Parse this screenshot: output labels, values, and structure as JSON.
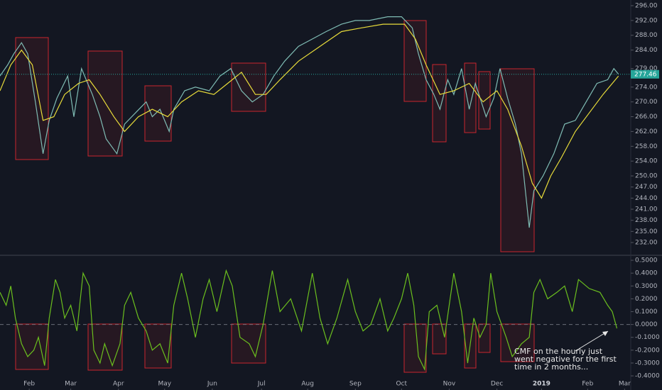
{
  "chart_data": [
    {
      "type": "line",
      "xlim": [
        0,
        410
      ],
      "ylim": [
        229.13,
        297.53
      ],
      "yticks": [
        {
          "value": 296,
          "label": "296.00"
        },
        {
          "value": 292,
          "label": "292.00"
        },
        {
          "value": 288,
          "label": "288.00"
        },
        {
          "value": 284,
          "label": "284.00"
        },
        {
          "value": 279,
          "label": "279.00"
        },
        {
          "value": 274,
          "label": "274.00"
        },
        {
          "value": 270,
          "label": "270.00"
        },
        {
          "value": 266,
          "label": "266.00"
        },
        {
          "value": 262,
          "label": "262.00"
        },
        {
          "value": 258,
          "label": "258.00"
        },
        {
          "value": 254,
          "label": "254.00"
        },
        {
          "value": 250,
          "label": "250.00"
        },
        {
          "value": 247,
          "label": "247.00"
        },
        {
          "value": 244,
          "label": "244.00"
        },
        {
          "value": 241,
          "label": "241.00"
        },
        {
          "value": 238,
          "label": "238.00"
        },
        {
          "value": 235,
          "label": "235.00"
        },
        {
          "value": 232,
          "label": "232.00"
        }
      ],
      "last_value": 277.46,
      "last_color": "#26a69a",
      "series": [
        {
          "color": "#7fbcb4",
          "x": [
            0,
            5,
            9,
            14,
            18,
            23,
            28,
            32,
            37,
            44,
            48,
            53,
            56,
            60,
            65,
            69,
            76,
            81,
            88,
            95,
            99,
            104,
            110,
            113,
            120,
            127,
            136,
            143,
            150,
            157,
            164,
            171,
            178,
            185,
            194,
            203,
            212,
            222,
            231,
            240,
            252,
            261,
            268,
            272,
            277,
            282,
            286,
            291,
            295,
            300,
            305,
            309,
            316,
            321,
            325,
            330,
            335,
            339,
            344,
            347,
            353,
            360,
            367,
            374,
            381,
            388,
            395,
            399,
            402
          ],
          "values": [
            277,
            280,
            283,
            286,
            283,
            270,
            256,
            265,
            271,
            277,
            266,
            279,
            276,
            272,
            266,
            260,
            256,
            264,
            267,
            270,
            266,
            268,
            262,
            268,
            273,
            274,
            273,
            277,
            279,
            273,
            270,
            272,
            277,
            281,
            285,
            287,
            289,
            291,
            292,
            292,
            293,
            293,
            290,
            283,
            276,
            272,
            268,
            276,
            272,
            279,
            268,
            275,
            266,
            271,
            279,
            271,
            264,
            256,
            236,
            246,
            250,
            256,
            264,
            265,
            270,
            275,
            276,
            279,
            277.5
          ]
        },
        {
          "color": "#e8dc3a",
          "x": [
            0,
            7,
            14,
            21,
            28,
            35,
            42,
            51,
            58,
            65,
            74,
            81,
            90,
            99,
            109,
            118,
            129,
            139,
            148,
            157,
            166,
            173,
            182,
            194,
            208,
            222,
            235,
            249,
            263,
            270,
            277,
            286,
            295,
            305,
            314,
            323,
            330,
            339,
            346,
            352,
            358,
            365,
            374,
            383,
            392,
            402
          ],
          "values": [
            273,
            280,
            284,
            280,
            265,
            266,
            272,
            275,
            276,
            272,
            266,
            262,
            266,
            268,
            266,
            270,
            273,
            272,
            275,
            278,
            272,
            272,
            276,
            281,
            285,
            289,
            290,
            291,
            291,
            287,
            280,
            272,
            273,
            275,
            270,
            273,
            268,
            258,
            248,
            244,
            250,
            255,
            262,
            267,
            272,
            277
          ]
        }
      ]
    },
    {
      "type": "line",
      "xlim": [
        0,
        410
      ],
      "ylim": [
        -0.499,
        0.528
      ],
      "zero_line": 0,
      "yticks": [
        {
          "value": 0.5,
          "label": "0.5000"
        },
        {
          "value": 0.4,
          "label": "0.4000"
        },
        {
          "value": 0.3,
          "label": "0.3000"
        },
        {
          "value": 0.2,
          "label": "0.2000"
        },
        {
          "value": 0.1,
          "label": "0.1000"
        },
        {
          "value": 0,
          "label": "0.0000"
        },
        {
          "value": -0.1,
          "label": "-0.1000"
        },
        {
          "value": -0.2,
          "label": "-0.2000"
        },
        {
          "value": -0.3,
          "label": "-0.3000"
        },
        {
          "value": -0.4,
          "label": "-0.4000"
        }
      ],
      "xticks": [
        {
          "value": 19,
          "label": "Feb"
        },
        {
          "value": 46,
          "label": "Mar"
        },
        {
          "value": 77,
          "label": "Apr"
        },
        {
          "value": 107,
          "label": "May"
        },
        {
          "value": 138,
          "label": "Jun"
        },
        {
          "value": 170,
          "label": "Jul"
        },
        {
          "value": 200,
          "label": "Aug"
        },
        {
          "value": 231,
          "label": "Sep"
        },
        {
          "value": 261,
          "label": "Oct"
        },
        {
          "value": 292,
          "label": "Nov"
        },
        {
          "value": 323,
          "label": "Dec"
        },
        {
          "value": 352,
          "label": "2019"
        },
        {
          "value": 382,
          "label": "Feb"
        },
        {
          "value": 406,
          "label": "Mar"
        }
      ],
      "annotation": "CMF on the hourly just went negative for the first time in 2 months...",
      "series": [
        {
          "color": "#6bbf1e",
          "x": [
            0,
            4,
            7,
            10,
            14,
            18,
            22,
            25,
            29,
            32,
            36,
            39,
            42,
            46,
            50,
            54,
            58,
            61,
            65,
            68,
            73,
            78,
            81,
            85,
            90,
            95,
            99,
            104,
            109,
            113,
            118,
            122,
            127,
            132,
            136,
            141,
            147,
            151,
            156,
            162,
            166,
            171,
            177,
            182,
            189,
            196,
            203,
            208,
            213,
            219,
            226,
            231,
            236,
            241,
            247,
            252,
            256,
            261,
            265,
            269,
            272,
            276,
            279,
            284,
            289,
            295,
            300,
            304,
            308,
            312,
            316,
            319,
            323,
            329,
            333,
            339,
            344,
            347,
            351,
            356,
            362,
            367,
            372,
            376,
            383,
            390,
            395,
            398,
            401
          ],
          "values": [
            0.25,
            0.15,
            0.3,
            0.05,
            -0.15,
            -0.25,
            -0.2,
            -0.1,
            -0.32,
            0.05,
            0.35,
            0.25,
            0.05,
            0.15,
            -0.05,
            0.4,
            0.3,
            -0.2,
            -0.3,
            -0.15,
            -0.32,
            -0.15,
            0.15,
            0.25,
            0.05,
            -0.05,
            -0.2,
            -0.15,
            -0.3,
            0.15,
            0.4,
            0.2,
            -0.1,
            0.2,
            0.35,
            0.1,
            0.42,
            0.3,
            -0.1,
            -0.15,
            -0.25,
            0.0,
            0.42,
            0.1,
            0.2,
            -0.05,
            0.4,
            0.05,
            -0.15,
            0.05,
            0.35,
            0.1,
            -0.05,
            0.0,
            0.2,
            -0.05,
            0.05,
            0.2,
            0.4,
            0.15,
            -0.25,
            -0.35,
            0.1,
            0.15,
            -0.1,
            0.4,
            0.1,
            -0.3,
            0.05,
            -0.1,
            0.0,
            0.4,
            0.1,
            -0.1,
            -0.25,
            -0.15,
            -0.1,
            0.25,
            0.35,
            0.2,
            0.25,
            0.3,
            0.1,
            0.35,
            0.28,
            0.25,
            0.15,
            0.1,
            -0.03
          ]
        }
      ]
    }
  ]
}
